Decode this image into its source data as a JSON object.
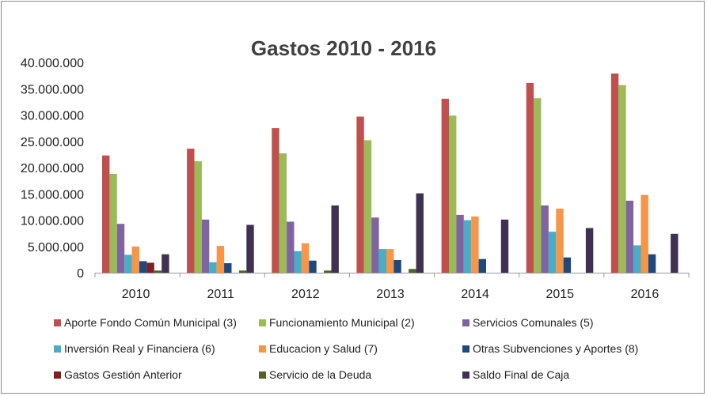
{
  "chart_data": {
    "type": "bar",
    "title": "Gastos 2010 - 2016",
    "xlabel": "",
    "ylabel": "",
    "ylim": [
      0,
      40000000
    ],
    "yticks": [
      0,
      5000000,
      10000000,
      15000000,
      20000000,
      25000000,
      30000000,
      35000000,
      40000000
    ],
    "ytick_labels": [
      "0",
      "5.000.000",
      "10.000.000",
      "15.000.000",
      "20.000.000",
      "25.000.000",
      "30.000.000",
      "35.000.000",
      "40.000.000"
    ],
    "grid": false,
    "legend_position": "bottom",
    "categories": [
      "2010",
      "2011",
      "2012",
      "2013",
      "2014",
      "2015",
      "2016"
    ],
    "series": [
      {
        "name": "Aporte Fondo Común Municipal (3)",
        "color": "#c0504d",
        "values": [
          22300000,
          23600000,
          27500000,
          29700000,
          33100000,
          36100000,
          37900000
        ]
      },
      {
        "name": "Funcionamiento Municipal (2)",
        "color": "#9bbb59",
        "values": [
          18800000,
          21200000,
          22700000,
          25200000,
          29900000,
          33200000,
          35700000
        ]
      },
      {
        "name": "Servicios Comunales (5)",
        "color": "#8064a2",
        "values": [
          9300000,
          10100000,
          9700000,
          10500000,
          11000000,
          12800000,
          13700000
        ]
      },
      {
        "name": "Inversión Real y Financiera (6)",
        "color": "#4bacc6",
        "values": [
          3400000,
          2000000,
          4100000,
          4500000,
          10000000,
          7800000,
          5200000
        ]
      },
      {
        "name": "Educacion y Salud (7)",
        "color": "#f79646",
        "values": [
          5000000,
          5100000,
          5600000,
          4500000,
          10700000,
          12200000,
          14800000
        ]
      },
      {
        "name": "Otras Subvenciones y Aportes (8)",
        "color": "#1f497d",
        "values": [
          2200000,
          1800000,
          2300000,
          2400000,
          2600000,
          2900000,
          3500000
        ]
      },
      {
        "name": "Gastos Gestión Anterior",
        "color": "#7f1f1f",
        "values": [
          1900000,
          0,
          0,
          0,
          0,
          0,
          0
        ]
      },
      {
        "name": "Servicio de la Deuda",
        "color": "#4f6228",
        "values": [
          400000,
          400000,
          400000,
          700000,
          0,
          0,
          0
        ]
      },
      {
        "name": "Saldo Final de Caja",
        "color": "#3f3151",
        "values": [
          3500000,
          9100000,
          12800000,
          15100000,
          10100000,
          8500000,
          7400000
        ]
      }
    ]
  }
}
